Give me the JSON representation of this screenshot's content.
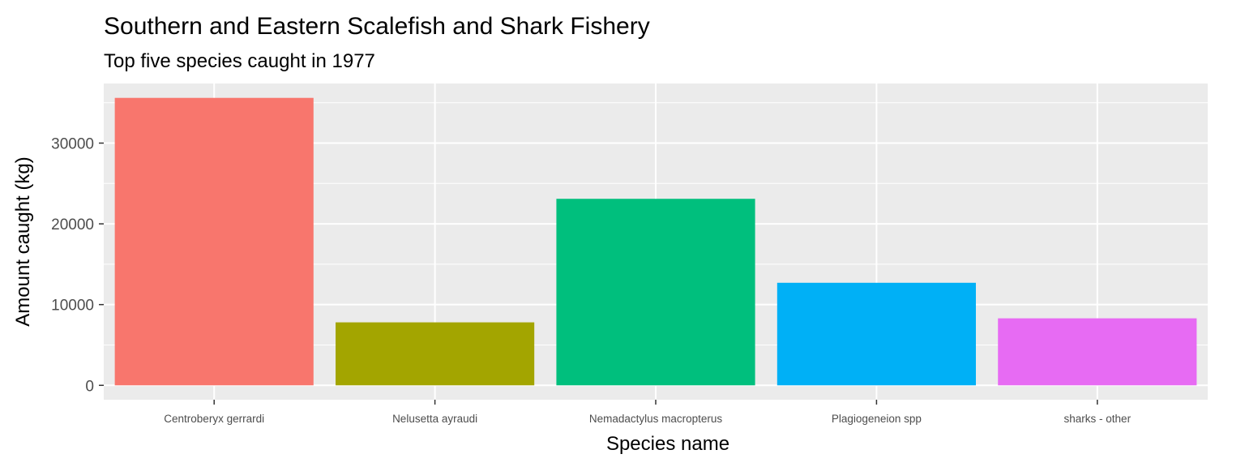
{
  "chart_data": {
    "type": "bar",
    "title": "Southern and Eastern Scalefish and Shark Fishery",
    "subtitle": "Top five species caught in 1977",
    "xlabel": "Species name",
    "ylabel": "Amount caught (kg)",
    "categories": [
      "Centroberyx gerrardi",
      "Nelusetta ayraudi",
      "Nemadactylus macropterus",
      "Plagiogeneion spp",
      "sharks - other"
    ],
    "values": [
      35600,
      7800,
      23100,
      12700,
      8300
    ],
    "colors": [
      "#F8766D",
      "#A3A500",
      "#00BF7D",
      "#00B0F6",
      "#E76BF3"
    ],
    "ylim": [
      -1780,
      37380
    ],
    "yticks": [
      0,
      10000,
      20000,
      30000
    ],
    "ytick_labels": [
      "0",
      "10000",
      "20000",
      "30000"
    ],
    "legend": "none",
    "grid": true,
    "panel_background": "#EBEBEB",
    "grid_color": "#FFFFFF"
  }
}
